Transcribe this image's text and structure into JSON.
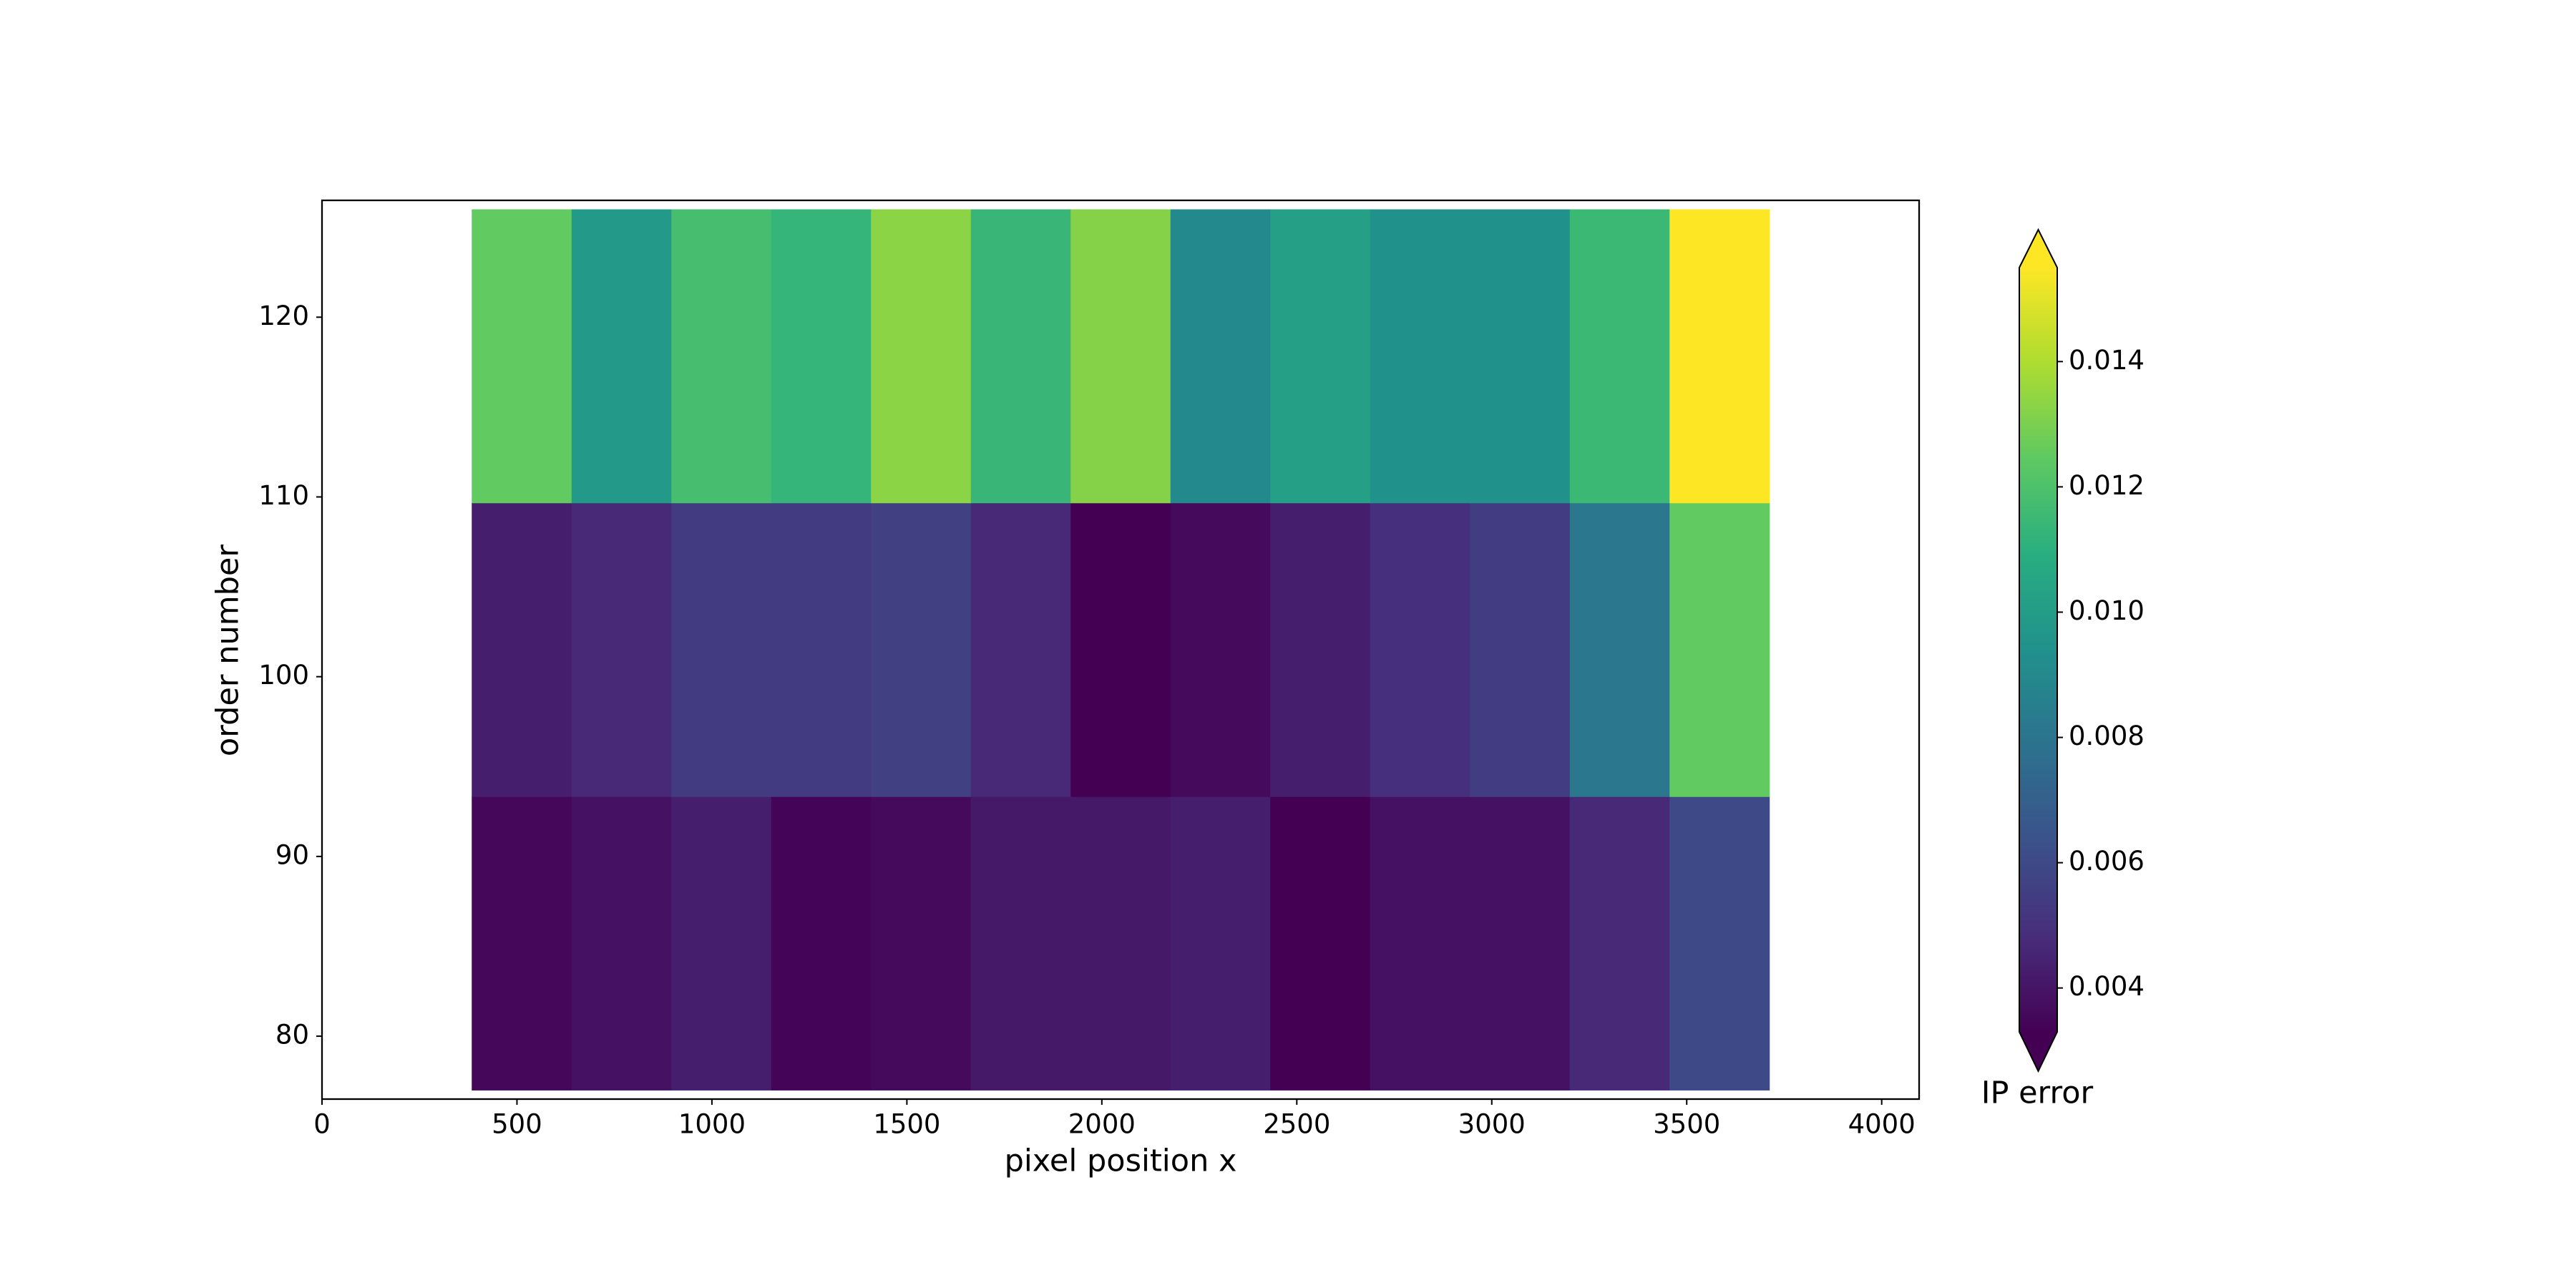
{
  "chart_data": {
    "type": "heatmap",
    "x_label": "pixel position x",
    "y_label": "order number",
    "xlim": [
      0,
      4096
    ],
    "ylim": [
      76.5,
      126.5
    ],
    "xticks": [
      0,
      500,
      1000,
      1500,
      2000,
      2500,
      3000,
      3500,
      4000
    ],
    "yticks": [
      80,
      90,
      100,
      110,
      120
    ],
    "x_edges": [
      384,
      640,
      896,
      1152,
      1408,
      1664,
      1920,
      2176,
      2432,
      2688,
      2944,
      3200,
      3456,
      3712
    ],
    "y_edges": [
      77,
      93.33,
      109.67,
      126
    ],
    "z": [
      [
        0.0035,
        0.0039,
        0.0043,
        0.0034,
        0.0036,
        0.0041,
        0.0041,
        0.0043,
        0.0032,
        0.0039,
        0.0039,
        0.0047,
        0.006
      ],
      [
        0.0043,
        0.0047,
        0.0054,
        0.0054,
        0.0056,
        0.0047,
        0.0032,
        0.0036,
        0.0043,
        0.0049,
        0.0055,
        0.0081,
        0.0125
      ],
      [
        0.0125,
        0.0098,
        0.0118,
        0.0113,
        0.0133,
        0.0114,
        0.0132,
        0.009,
        0.0102,
        0.0094,
        0.0094,
        0.0115,
        0.016
      ]
    ],
    "colormap": "viridis",
    "colorbar": {
      "label": "IP error",
      "lim": [
        0.0033,
        0.0155
      ],
      "extend": "both",
      "ticks": [
        0.004,
        0.006,
        0.008,
        {
          "value": 0.01,
          "label": "0.010"
        },
        0.012,
        0.014
      ]
    }
  }
}
